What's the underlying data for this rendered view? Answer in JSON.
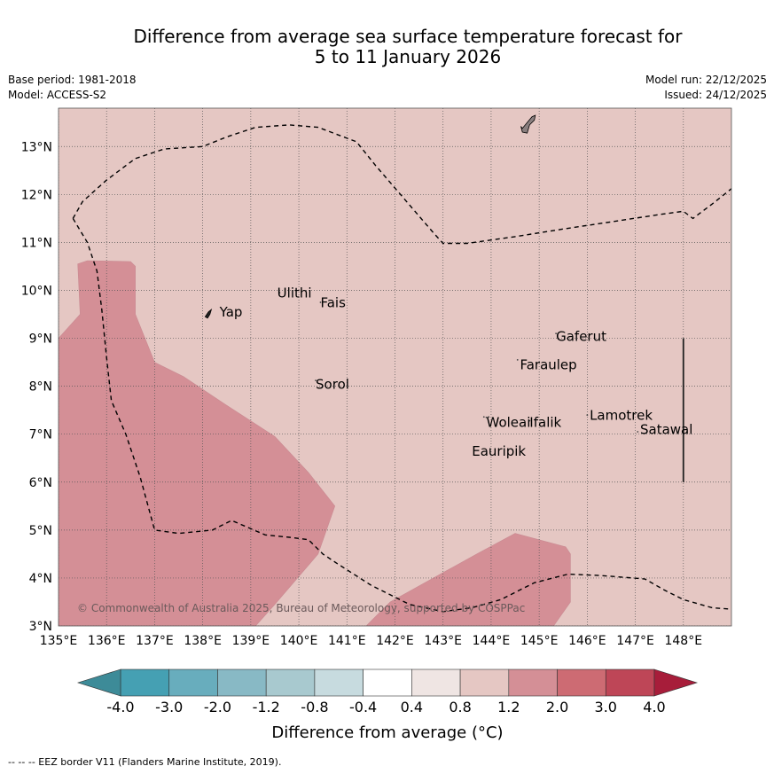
{
  "title": {
    "line1": "Difference from average sea surface temperature forecast for",
    "line2": "5 to 11 January 2026"
  },
  "meta": {
    "base_period": "Base period: 1981-2018",
    "model": "Model: ACCESS-S2",
    "model_run": "Model run: 22/12/2025",
    "issued": "Issued: 24/12/2025"
  },
  "map": {
    "lon_range": [
      135,
      149
    ],
    "lat_range": [
      3,
      13.8
    ],
    "lon_ticks": [
      135,
      136,
      137,
      138,
      139,
      140,
      141,
      142,
      143,
      144,
      145,
      146,
      147,
      148
    ],
    "lon_tick_labels": [
      "135°E",
      "136°E",
      "137°E",
      "138°E",
      "139°E",
      "140°E",
      "141°E",
      "142°E",
      "143°E",
      "144°E",
      "145°E",
      "146°E",
      "147°E",
      "148°E"
    ],
    "lat_ticks": [
      3,
      4,
      5,
      6,
      7,
      8,
      9,
      10,
      11,
      12,
      13
    ],
    "lat_tick_labels": [
      "3°N",
      "4°N",
      "5°N",
      "6°N",
      "7°N",
      "8°N",
      "9°N",
      "10°N",
      "11°N",
      "12°N",
      "13°N"
    ],
    "background_anomaly_band": "0.8 to 1.2",
    "background_color": "#e5c7c3",
    "warm_region_band": "1.2 to 2.0",
    "warm_region_color": "#d48f96",
    "copyright": "© Commonwealth of Australia 2025, Bureau of Meteorology, supported by COSPPac",
    "places": [
      {
        "name": "Yap",
        "lon": 138.35,
        "lat": 9.45
      },
      {
        "name": "Ulithi",
        "lon": 139.55,
        "lat": 9.85
      },
      {
        "name": "Fais",
        "lon": 140.45,
        "lat": 9.65
      },
      {
        "name": "Gaferut",
        "lon": 145.35,
        "lat": 8.95
      },
      {
        "name": "Faraulep",
        "lon": 144.6,
        "lat": 8.35
      },
      {
        "name": "Sorol",
        "lon": 140.35,
        "lat": 7.95
      },
      {
        "name": "Woleai",
        "lon": 143.9,
        "lat": 7.15
      },
      {
        "name": "Ifalik",
        "lon": 144.8,
        "lat": 7.15
      },
      {
        "name": "Lamotrek",
        "lon": 146.05,
        "lat": 7.3
      },
      {
        "name": "Satawal",
        "lon": 147.1,
        "lat": 7.0
      },
      {
        "name": "Eauripik",
        "lon": 143.6,
        "lat": 6.55
      }
    ],
    "eez_border": [
      [
        135.3,
        11.5
      ],
      [
        135.5,
        11.85
      ],
      [
        136.0,
        12.3
      ],
      [
        136.6,
        12.75
      ],
      [
        137.2,
        12.95
      ],
      [
        138.0,
        13.0
      ],
      [
        138.5,
        13.2
      ],
      [
        139.1,
        13.4
      ],
      [
        139.8,
        13.45
      ],
      [
        140.4,
        13.4
      ],
      [
        141.2,
        13.1
      ],
      [
        141.6,
        12.6
      ],
      [
        142.2,
        11.9
      ],
      [
        142.8,
        11.2
      ],
      [
        143.0,
        10.98
      ],
      [
        143.5,
        10.98
      ],
      [
        144.5,
        11.12
      ],
      [
        145.5,
        11.28
      ],
      [
        146.5,
        11.43
      ],
      [
        147.5,
        11.58
      ],
      [
        148.0,
        11.65
      ],
      [
        148.2,
        11.5
      ],
      [
        148.6,
        11.8
      ],
      [
        149.0,
        12.12
      ]
    ],
    "eez_border_south": [
      [
        135.3,
        11.5
      ],
      [
        135.6,
        11.0
      ],
      [
        135.8,
        10.4
      ],
      [
        135.9,
        9.6
      ],
      [
        136.0,
        8.6
      ],
      [
        136.1,
        7.7
      ],
      [
        136.4,
        7.0
      ],
      [
        136.7,
        6.1
      ],
      [
        137.0,
        5.0
      ],
      [
        137.5,
        4.93
      ],
      [
        138.2,
        5.0
      ],
      [
        138.6,
        5.2
      ],
      [
        139.3,
        4.9
      ],
      [
        139.8,
        4.85
      ],
      [
        140.2,
        4.8
      ],
      [
        140.5,
        4.5
      ],
      [
        140.8,
        4.3
      ],
      [
        141.5,
        3.85
      ],
      [
        142.3,
        3.45
      ],
      [
        143.0,
        3.3
      ],
      [
        143.6,
        3.38
      ],
      [
        144.2,
        3.55
      ],
      [
        144.9,
        3.9
      ],
      [
        145.6,
        4.08
      ],
      [
        146.3,
        4.05
      ],
      [
        147.2,
        3.98
      ],
      [
        147.6,
        3.75
      ],
      [
        148.0,
        3.55
      ],
      [
        148.6,
        3.38
      ],
      [
        149.0,
        3.35
      ]
    ],
    "warm_region_west": [
      [
        135.0,
        9.0
      ],
      [
        135.45,
        9.5
      ],
      [
        135.4,
        10.55
      ],
      [
        135.6,
        10.62
      ],
      [
        136.5,
        10.6
      ],
      [
        136.6,
        10.5
      ],
      [
        136.6,
        9.5
      ],
      [
        137.0,
        8.5
      ],
      [
        137.6,
        8.2
      ],
      [
        138.5,
        7.6
      ],
      [
        139.5,
        6.95
      ],
      [
        140.2,
        6.2
      ],
      [
        140.75,
        5.5
      ],
      [
        140.4,
        4.5
      ],
      [
        139.5,
        3.45
      ],
      [
        139.1,
        3.0
      ],
      [
        135.0,
        3.0
      ]
    ],
    "warm_region_south": [
      [
        141.4,
        3.0
      ],
      [
        141.9,
        3.5
      ],
      [
        142.8,
        4.0
      ],
      [
        143.7,
        4.5
      ],
      [
        144.5,
        4.93
      ],
      [
        145.55,
        4.65
      ],
      [
        145.65,
        4.5
      ],
      [
        145.65,
        3.5
      ],
      [
        145.3,
        3.0
      ]
    ],
    "vertical_line_lon": 148.0,
    "vertical_line_lat": [
      6.0,
      9.0
    ]
  },
  "colorbar": {
    "tick_labels": [
      "-4.0",
      "-3.0",
      "-2.0",
      "-1.2",
      "-0.8",
      "-0.4",
      "0.4",
      "0.8",
      "1.2",
      "2.0",
      "3.0",
      "4.0"
    ],
    "colors": [
      "#45a0b3",
      "#68adbd",
      "#88b9c5",
      "#a8c9cf",
      "#c7dbdf",
      "#ffffff",
      "#efe5e3",
      "#e5c7c3",
      "#d48f96",
      "#cd6b73",
      "#be4657"
    ],
    "under_color": "#3d8b98",
    "over_color": "#a71d3a",
    "label": "Difference from average (°C)"
  },
  "footer": {
    "eez_legend": "--  --  -- EEZ border V11 (Flanders Marine Institute, 2019)."
  }
}
